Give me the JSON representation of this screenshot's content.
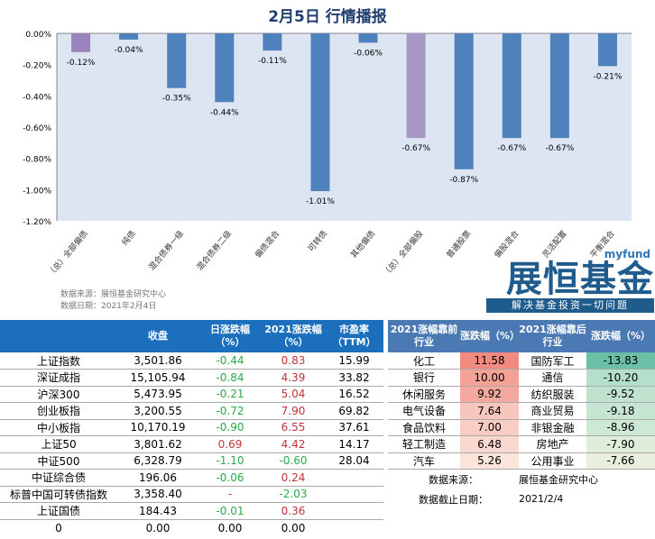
{
  "title": "2月5日  行情播报",
  "chart_data": {
    "type": "bar",
    "categories": [
      "（总）全部偏债",
      "纯债",
      "混合债券一级",
      "混合债券二级",
      "偏债混合",
      "可转债",
      "其他偏债",
      "（总）全部偏股",
      "普通股票",
      "偏股混合",
      "灵活配置",
      "平衡混合"
    ],
    "values": [
      -0.12,
      -0.04,
      -0.35,
      -0.44,
      -0.11,
      -1.01,
      -0.06,
      -0.67,
      -0.87,
      -0.67,
      -0.67,
      -0.21
    ],
    "data_labels": [
      "-0.12%",
      "-0.04%",
      "-0.35%",
      "-0.44%",
      "-0.11%",
      "-1.01%",
      "-0.06%",
      "-0.67%",
      "-0.87%",
      "-0.67%",
      "-0.67%",
      "-0.21%"
    ],
    "ylim": [
      -1.2,
      0
    ],
    "yticks": [
      "0.00%",
      "-0.20%",
      "-0.40%",
      "-0.60%",
      "-0.80%",
      "-1.00%",
      "-1.20%"
    ],
    "bar_colors": [
      "#9b84bd",
      "#4f81bd",
      "#4f81bd",
      "#4f81bd",
      "#4f81bd",
      "#4f81bd",
      "#4f81bd",
      "#a898c6",
      "#4f81bd",
      "#4f81bd",
      "#4f81bd",
      "#4f81bd"
    ],
    "plot_bg": "#dce5f1",
    "grid": false
  },
  "source": {
    "line1": "数据来源：展恒基金研究中心",
    "line2": "数据日期：2021年2月4日"
  },
  "logo": {
    "my": "myfund",
    "name": "展恒基金",
    "slogan": "解决基金投资一切问题"
  },
  "t1": {
    "headers": [
      "",
      "收盘",
      "日涨跌幅（%）",
      "2021涨跌幅（%）",
      "市盈率（TTM）"
    ],
    "rows": [
      [
        "上证指数",
        "3,501.86",
        "-0.44",
        "0.83",
        "15.99"
      ],
      [
        "深证成指",
        "15,105.94",
        "-0.84",
        "4.39",
        "33.82"
      ],
      [
        "沪深300",
        "5,473.95",
        "-0.21",
        "5.04",
        "16.52"
      ],
      [
        "创业板指",
        "3,200.55",
        "-0.72",
        "7.90",
        "69.82"
      ],
      [
        "中小板指",
        "10,170.19",
        "-0.90",
        "6.55",
        "37.61"
      ],
      [
        "上证50",
        "3,801.62",
        "0.69",
        "4.42",
        "14.17"
      ],
      [
        "中证500",
        "6,328.79",
        "-1.10",
        "-0.60",
        "28.04"
      ],
      [
        "中证综合债",
        "196.06",
        "-0.06",
        "0.24",
        ""
      ],
      [
        "标普中国可转债指数",
        "3,358.40",
        "-",
        "-2.03",
        ""
      ],
      [
        "上证国债",
        "184.43",
        "-0.01",
        "0.36",
        ""
      ],
      [
        "0",
        "0.00",
        "0.00",
        "0.00",
        ""
      ]
    ]
  },
  "t2": {
    "headers": [
      "2021涨幅靠前行业",
      "涨跌幅（%）",
      "2021涨幅靠后行业",
      "涨跌幅（%）"
    ],
    "rows": [
      [
        "化工",
        "11.58",
        "国防军工",
        "-13.83"
      ],
      [
        "银行",
        "10.00",
        "通信",
        "-10.20"
      ],
      [
        "休闲服务",
        "9.92",
        "纺织服装",
        "-9.52"
      ],
      [
        "电气设备",
        "7.64",
        "商业贸易",
        "-9.18"
      ],
      [
        "食品饮料",
        "7.00",
        "非银金融",
        "-8.96"
      ],
      [
        "轻工制造",
        "6.48",
        "房地产",
        "-7.90"
      ],
      [
        "汽车",
        "5.26",
        "公用事业",
        "-7.66"
      ]
    ],
    "up_colors": [
      "#f28b7f",
      "#f4a196",
      "#f5a89d",
      "#f8c6bd",
      "#f9cdc4",
      "#fad8cf",
      "#fbe5da"
    ],
    "down_colors": [
      "#6cc0a7",
      "#b4dfcb",
      "#bfe3cf",
      "#c6e6d3",
      "#cde8d5",
      "#e0eed9",
      "#e8f0dd"
    ],
    "source_label": "数据来源：",
    "source_value": "展恒基金研究中心",
    "date_label": "数据截止日期：",
    "date_value": "2021/2/4"
  }
}
